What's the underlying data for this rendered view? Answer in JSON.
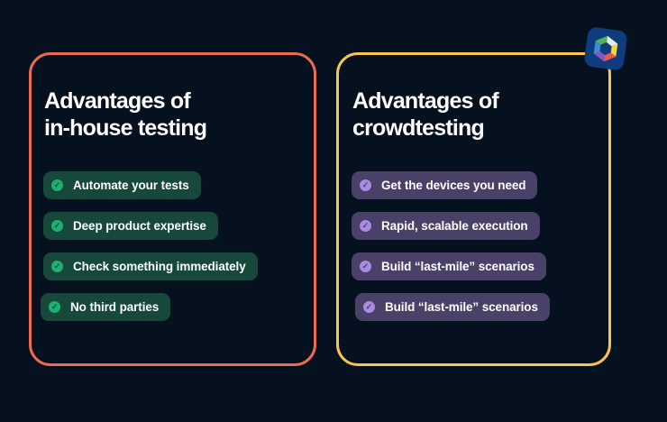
{
  "canvas": {
    "background": "#061120"
  },
  "logo": {
    "tile_color": "#0E3C7D",
    "cube_colors": {
      "top": "#E9ECEF",
      "right": "#FBD23D",
      "bottom_right": "#EC5746",
      "bottom": "#7E57C0",
      "left": "#3E8BD8",
      "top_left": "#4CB253"
    }
  },
  "text_color": "#FFFFFF",
  "cards": [
    {
      "title_line1": "Advantages of",
      "title_line2": "in-house testing",
      "accent_color": "#EC6A50",
      "pill_color": "#16493B",
      "check_color": "#1CB173",
      "items": [
        "Automate your tests",
        "Deep product expertise",
        "Check something immediately",
        "No third parties"
      ]
    },
    {
      "title_line1": "Advantages of",
      "title_line2": "crowdtesting",
      "accent_color": "#FBC54D",
      "pill_color": "#4A4168",
      "check_color": "#A88CE1",
      "items": [
        "Get the devices you need",
        "Rapid, scalable execution",
        "Build “last-mile” scenarios",
        "Build “last-mile” scenarios"
      ]
    }
  ]
}
